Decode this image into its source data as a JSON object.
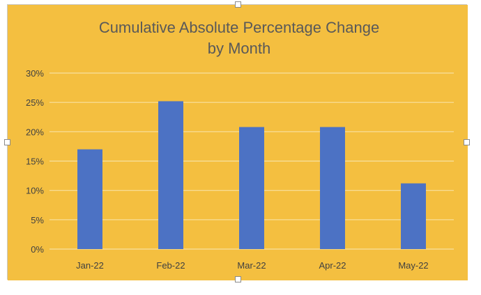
{
  "chart_data": {
    "type": "bar",
    "title_lines": [
      "Cumulative Absolute Percentage Change",
      "by Month"
    ],
    "categories": [
      "Jan-22",
      "Feb-22",
      "Mar-22",
      "Apr-22",
      "May-22"
    ],
    "values": [
      17,
      25.2,
      20.8,
      20.8,
      11.2
    ],
    "ylim": [
      0,
      30
    ],
    "yticks": [
      0,
      5,
      10,
      15,
      20,
      25,
      30
    ],
    "ytick_labels": [
      "0%",
      "5%",
      "10%",
      "15%",
      "20%",
      "25%",
      "30%"
    ],
    "grid": true,
    "legend": "none"
  },
  "colors": {
    "plot_background": "#F4BF40",
    "bar": "#4C72C4",
    "gridline": "#F8E1A0",
    "axis_text": "#404040",
    "title_text": "#595959"
  }
}
